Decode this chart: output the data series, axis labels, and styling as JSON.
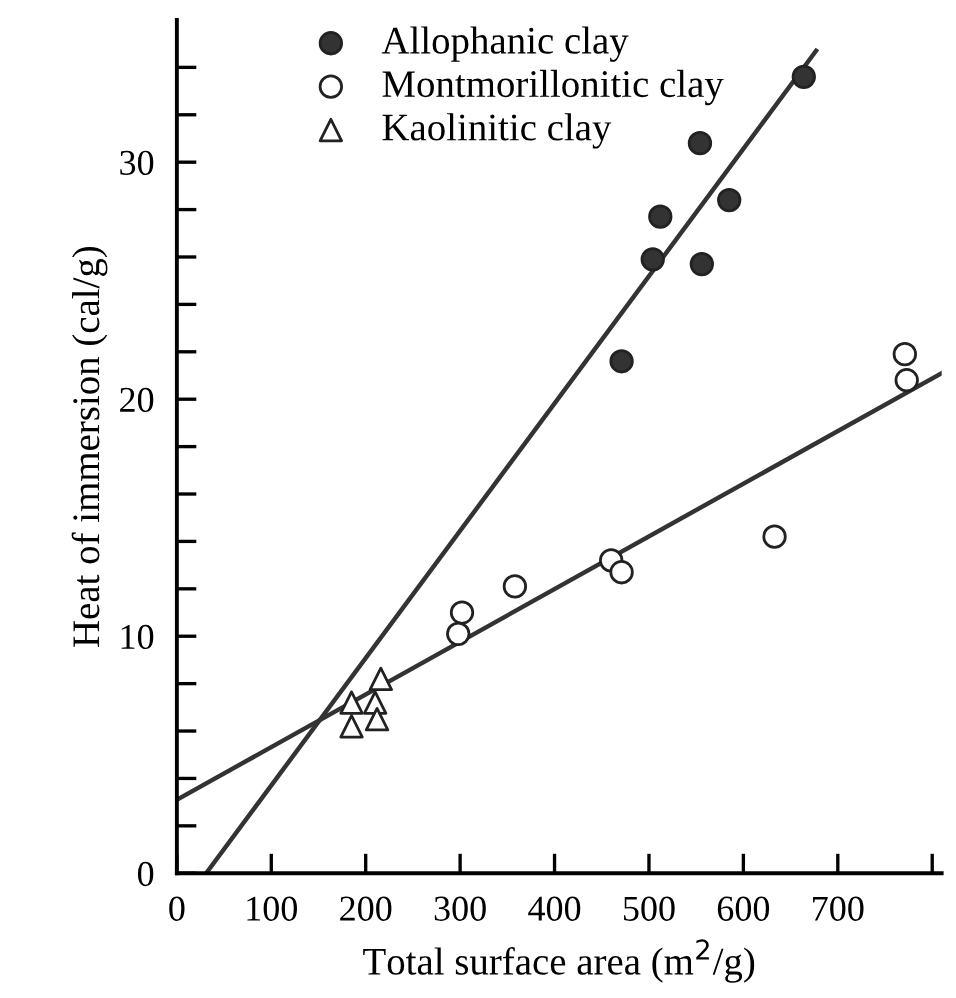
{
  "chart_data": {
    "type": "scatter",
    "xlabel": "Total surface area (m$^{2}$/g)",
    "ylabel": "Heat of immersion (cal/g)",
    "xlim": [
      0,
      810
    ],
    "ylim": [
      0,
      36
    ],
    "xticks": [
      0,
      100,
      200,
      300,
      400,
      500,
      600,
      700,
      {
        "value": 800,
        "label": null
      }
    ],
    "yticks": [
      0,
      {
        "value": 2,
        "label": null
      },
      {
        "value": 4,
        "label": null
      },
      {
        "value": 6,
        "label": null
      },
      {
        "value": 8,
        "label": null
      },
      10,
      {
        "value": 12,
        "label": null
      },
      {
        "value": 14,
        "label": null
      },
      {
        "value": 16,
        "label": null
      },
      {
        "value": 18,
        "label": null
      },
      20,
      {
        "value": 22,
        "label": null
      },
      {
        "value": 24,
        "label": null
      },
      {
        "value": 26,
        "label": null
      },
      {
        "value": 28,
        "label": null
      },
      30,
      {
        "value": 32,
        "label": null
      },
      {
        "value": 34,
        "label": null
      }
    ],
    "grid": false,
    "legend": "top left",
    "series": [
      {
        "name": "Allophanic clay",
        "color": "#333333",
        "marker": "circle",
        "x": [
          664,
          554,
          512,
          585,
          504,
          556,
          471
        ],
        "values": [
          33.6,
          30.8,
          27.7,
          28.4,
          25.9,
          25.7,
          21.6
        ]
      },
      {
        "name": "Montmorillonitic clay",
        "color": "#ffffff",
        "marker": "circle",
        "x": [
          771,
          773,
          633,
          460,
          471,
          358,
          302,
          298
        ],
        "values": [
          21.9,
          20.8,
          14.2,
          13.2,
          12.7,
          12.1,
          11.0,
          10.1
        ]
      },
      {
        "name": "Kaolinitic clay",
        "color": "#ffffff",
        "marker": "triangle",
        "x": [
          216,
          185,
          210,
          185,
          212
        ],
        "values": [
          8.2,
          7.2,
          7.2,
          6.2,
          6.5
        ]
      },
      {
        "type": "line",
        "color": "#333333",
        "marker": "none",
        "line_style": "solid",
        "x": [
          31,
          677
        ],
        "values": [
          0,
          34.7
        ]
      },
      {
        "type": "line",
        "color": "#333333",
        "marker": "none",
        "line_style": "solid",
        "x": [
          0,
          810
        ],
        "values": [
          3.1,
          21.1
        ]
      }
    ]
  }
}
